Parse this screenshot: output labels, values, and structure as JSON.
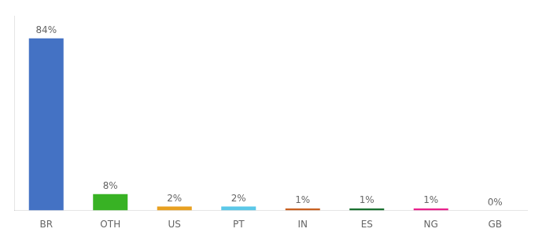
{
  "chart_data": {
    "type": "bar",
    "categories": [
      "BR",
      "OTH",
      "US",
      "PT",
      "IN",
      "ES",
      "NG",
      "GB"
    ],
    "values": [
      84,
      8,
      2,
      2,
      1,
      1,
      1,
      0
    ],
    "value_labels": [
      "84%",
      "8%",
      "2%",
      "2%",
      "1%",
      "1%",
      "1%",
      "0%"
    ],
    "data_labels": true,
    "colors": [
      "#4472c4",
      "#38b224",
      "#e8a020",
      "#5bc8e8",
      "#c86020",
      "#1a7030",
      "#e8208c",
      "#888888"
    ],
    "ylim": [
      0,
      95
    ],
    "grid": false,
    "tick_labels": "x"
  }
}
